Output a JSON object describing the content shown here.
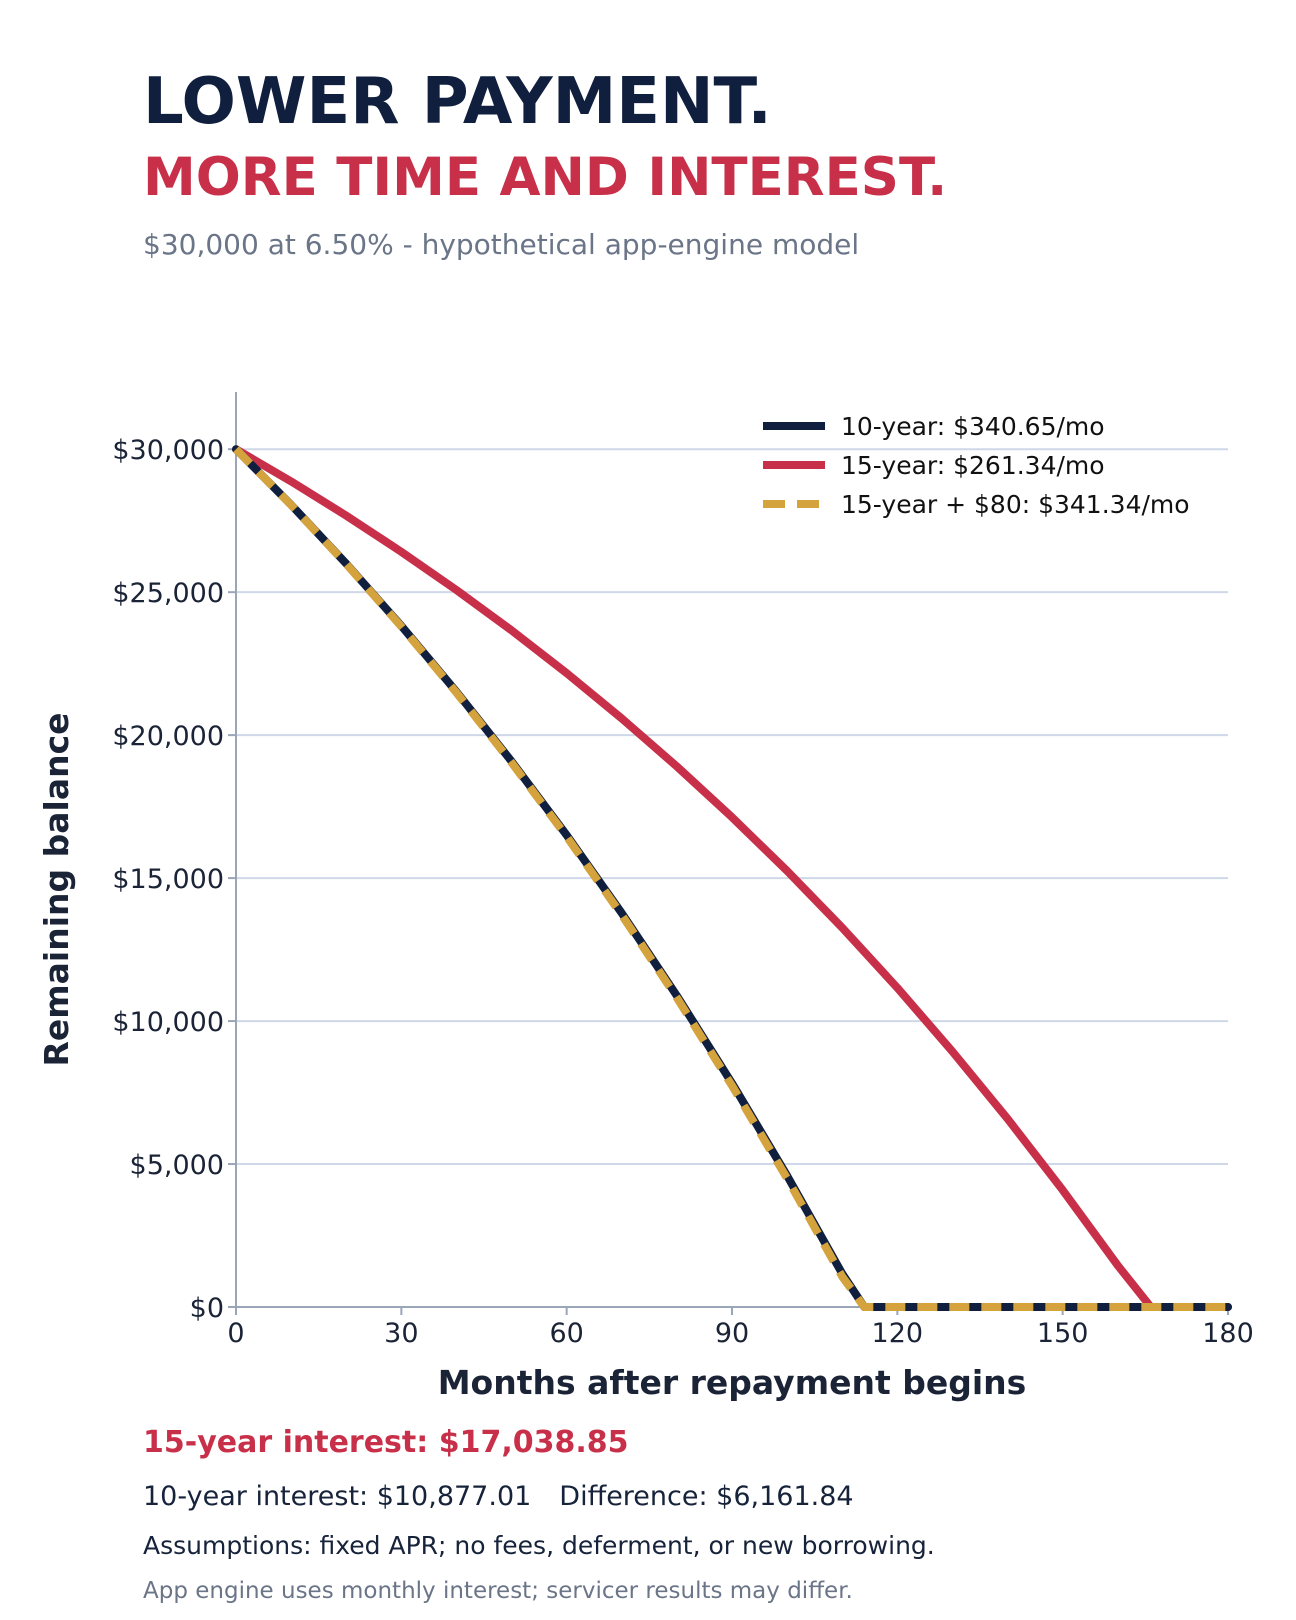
{
  "header": {
    "title": "LOWER PAYMENT.",
    "subtitle": "MORE TIME AND INTEREST.",
    "caption": "$30,000 at 6.50% - hypothetical app-engine model"
  },
  "colors": {
    "navy": "#0f1f3d",
    "red": "#c8304a",
    "gold": "#d4a33e",
    "grid": "#cfd8e8",
    "axis": "#9aa6b8",
    "muted": "#6b7588"
  },
  "chart_data": {
    "type": "line",
    "xlabel": "Months after repayment begins",
    "ylabel": "Remaining balance",
    "xlim": [
      0,
      180
    ],
    "ylim": [
      0,
      32000
    ],
    "x_ticks": [
      0,
      30,
      60,
      90,
      120,
      150,
      180
    ],
    "x_tick_labels": [
      "0",
      "30",
      "60",
      "90",
      "120",
      "150",
      "180"
    ],
    "y_ticks": [
      0,
      5000,
      10000,
      15000,
      20000,
      25000,
      30000
    ],
    "y_tick_labels": [
      "$0",
      "$5,000",
      "$10,000",
      "$15,000",
      "$20,000",
      "$25,000",
      "$30,000"
    ],
    "grid": "horizontal",
    "legend": "top-right",
    "series": [
      {
        "name": "10-year: $340.65/mo",
        "color": "#0f1f3d",
        "style": "solid",
        "points": [
          [
            0,
            30000
          ],
          [
            10,
            28055
          ],
          [
            20,
            25998
          ],
          [
            30,
            23822
          ],
          [
            40,
            21518
          ],
          [
            50,
            19081
          ],
          [
            60,
            16501
          ],
          [
            70,
            13772
          ],
          [
            80,
            10883
          ],
          [
            90,
            7827
          ],
          [
            100,
            4592
          ],
          [
            110,
            1169
          ],
          [
            114,
            0
          ],
          [
            120,
            0
          ],
          [
            150,
            0
          ],
          [
            180,
            0
          ]
        ]
      },
      {
        "name": "15-year: $261.34/mo",
        "color": "#c8304a",
        "style": "solid",
        "points": [
          [
            0,
            30000
          ],
          [
            10,
            28872
          ],
          [
            20,
            27677
          ],
          [
            30,
            26413
          ],
          [
            40,
            25076
          ],
          [
            50,
            23661
          ],
          [
            60,
            22164
          ],
          [
            70,
            20580
          ],
          [
            80,
            18903
          ],
          [
            90,
            17129
          ],
          [
            100,
            15251
          ],
          [
            110,
            13264
          ],
          [
            120,
            11162
          ],
          [
            130,
            8937
          ],
          [
            140,
            6582
          ],
          [
            150,
            4090
          ],
          [
            160,
            1453
          ],
          [
            166,
            0
          ],
          [
            180,
            0
          ]
        ]
      },
      {
        "name": "15-year + $80: $341.34/mo",
        "color": "#d4a33e",
        "style": "dashed",
        "points": [
          [
            0,
            30000
          ],
          [
            10,
            28048
          ],
          [
            20,
            25984
          ],
          [
            30,
            23799
          ],
          [
            40,
            21487
          ],
          [
            50,
            19040
          ],
          [
            60,
            16451
          ],
          [
            70,
            13711
          ],
          [
            80,
            10812
          ],
          [
            90,
            7744
          ],
          [
            100,
            4497
          ],
          [
            110,
            1062
          ],
          [
            114,
            0
          ],
          [
            120,
            0
          ],
          [
            150,
            0
          ],
          [
            180,
            0
          ]
        ]
      }
    ]
  },
  "footer": {
    "highlight": "15-year interest: $17,038.85",
    "ten_year_interest": "10-year interest: $10,877.01",
    "difference": "Difference: $6,161.84",
    "assumptions": "Assumptions: fixed APR; no fees, deferment, or new borrowing.",
    "note": "App engine uses monthly interest; servicer results may differ."
  }
}
